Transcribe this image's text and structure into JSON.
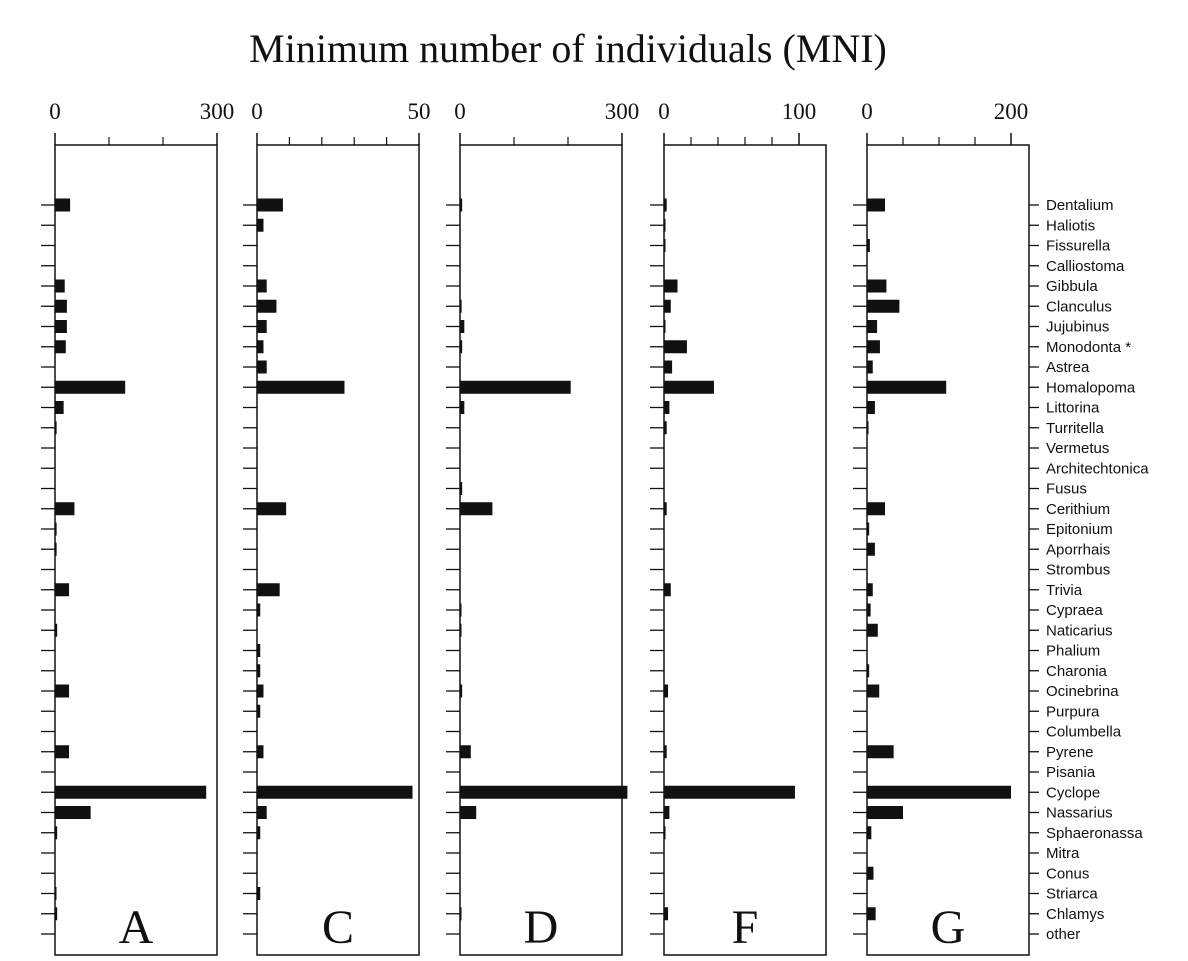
{
  "chart_data": {
    "type": "bar",
    "orientation": "horizontal",
    "title": "Minimum number of individuals (MNI)",
    "marker_note": "*",
    "marked_category": "Monodonta",
    "categories": [
      "Dentalium",
      "Haliotis",
      "Fissurella",
      "Calliostoma",
      "Gibbula",
      "Clanculus",
      "Jujubinus",
      "Monodonta",
      "Astrea",
      "Homalopoma",
      "Littorina",
      "Turritella",
      "Vermetus",
      "Architechtonica",
      "Fusus",
      "Cerithium",
      "Epitonium",
      "Aporrhais",
      "Strombus",
      "Trivia",
      "Cypraea",
      "Naticarius",
      "Phalium",
      "Charonia",
      "Ocinebrina",
      "Purpura",
      "Columbella",
      "Pyrene",
      "Pisania",
      "Cyclope",
      "Nassarius",
      "Sphaeronassa",
      "Mitra",
      "Conus",
      "Striarca",
      "Chlamys",
      "other"
    ],
    "panels": [
      {
        "label": "A",
        "xlim": [
          0,
          300
        ],
        "ticks": [
          0,
          300
        ],
        "minor_ticks": [
          100,
          200
        ],
        "values": [
          28,
          0,
          0,
          0,
          18,
          22,
          22,
          20,
          0,
          130,
          16,
          3,
          0,
          0,
          0,
          36,
          3,
          3,
          0,
          26,
          0,
          4,
          0,
          0,
          26,
          0,
          0,
          26,
          0,
          280,
          66,
          4,
          0,
          0,
          2,
          4,
          0
        ]
      },
      {
        "label": "C",
        "xlim": [
          0,
          50
        ],
        "ticks": [
          0,
          50
        ],
        "minor_ticks": [
          10,
          20,
          30,
          40
        ],
        "values": [
          8,
          2,
          0,
          0,
          3,
          6,
          3,
          2,
          3,
          27,
          0,
          0,
          0,
          0,
          0,
          9,
          0,
          0,
          0,
          7,
          1,
          0,
          1,
          1,
          2,
          1,
          0,
          2,
          0,
          48,
          3,
          1,
          0,
          0,
          1,
          0,
          0
        ]
      },
      {
        "label": "D",
        "xlim": [
          0,
          300
        ],
        "ticks": [
          0,
          300
        ],
        "minor_ticks": [
          100,
          200
        ],
        "values": [
          4,
          0,
          0,
          0,
          0,
          3,
          8,
          4,
          0,
          205,
          8,
          0,
          0,
          0,
          4,
          60,
          0,
          0,
          0,
          0,
          2,
          2,
          0,
          0,
          4,
          0,
          0,
          20,
          0,
          310,
          30,
          0,
          0,
          0,
          0,
          2,
          0
        ]
      },
      {
        "label": "F",
        "xlim": [
          0,
          120
        ],
        "ticks": [
          0,
          100
        ],
        "minor_ticks": [
          20,
          40,
          60,
          80
        ],
        "values": [
          2,
          1,
          1,
          0,
          10,
          5,
          1,
          17,
          6,
          37,
          4,
          2,
          0,
          0,
          0,
          2,
          0,
          0,
          0,
          5,
          0,
          0,
          0,
          0,
          3,
          0,
          0,
          2,
          0,
          97,
          4,
          1,
          0,
          0,
          0,
          3,
          0
        ]
      },
      {
        "label": "G",
        "xlim": [
          0,
          225
        ],
        "ticks": [
          0,
          200
        ],
        "minor_ticks": [
          50,
          100,
          150
        ],
        "values": [
          25,
          0,
          4,
          0,
          27,
          45,
          14,
          18,
          8,
          110,
          11,
          2,
          0,
          0,
          0,
          25,
          3,
          11,
          0,
          8,
          5,
          15,
          0,
          3,
          17,
          0,
          0,
          37,
          0,
          200,
          50,
          6,
          0,
          9,
          0,
          12,
          0
        ]
      }
    ]
  }
}
